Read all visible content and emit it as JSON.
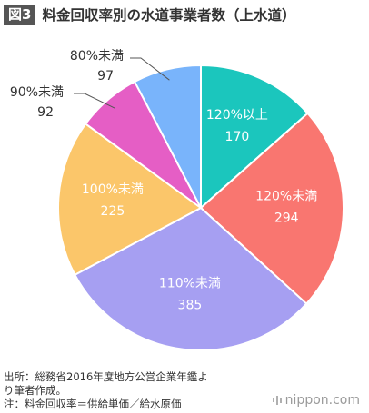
{
  "header": {
    "badge": "図3",
    "title": "料金回収率別の水道事業者数（上水道）"
  },
  "chart_data": {
    "type": "pie",
    "start_angle_deg": 0,
    "direction": "clockwise",
    "slices": [
      {
        "label": "120%以上",
        "value": 170,
        "value_label": "170",
        "color": "#1bc6bd",
        "label_inside": true
      },
      {
        "label": "120%未満",
        "value": 294,
        "value_label": "294",
        "color": "#f97670",
        "label_inside": true
      },
      {
        "label": "110%未満",
        "value": 385,
        "value_label": "385",
        "color": "#a69ff2",
        "label_inside": true
      },
      {
        "label": "100%未満",
        "value": 225,
        "value_label": "225",
        "color": "#fbc66a",
        "label_inside": true
      },
      {
        "label": "90%未満",
        "value": 92,
        "value_label": "92",
        "color": "#e55ec5",
        "label_inside": false
      },
      {
        "label": "80%未満",
        "value": 97,
        "value_label": "97",
        "color": "#79b4fb",
        "label_inside": false
      }
    ]
  },
  "footer": {
    "source": "出所：総務省2016年度地方公営企業年鑑よ\nり筆者作成。",
    "note": "注：料金回収率＝供給単価／給水原価",
    "brand": "nippon.com",
    "brand_icon": "sound-wave-icon",
    "brand_color": "#9a9a9a"
  }
}
